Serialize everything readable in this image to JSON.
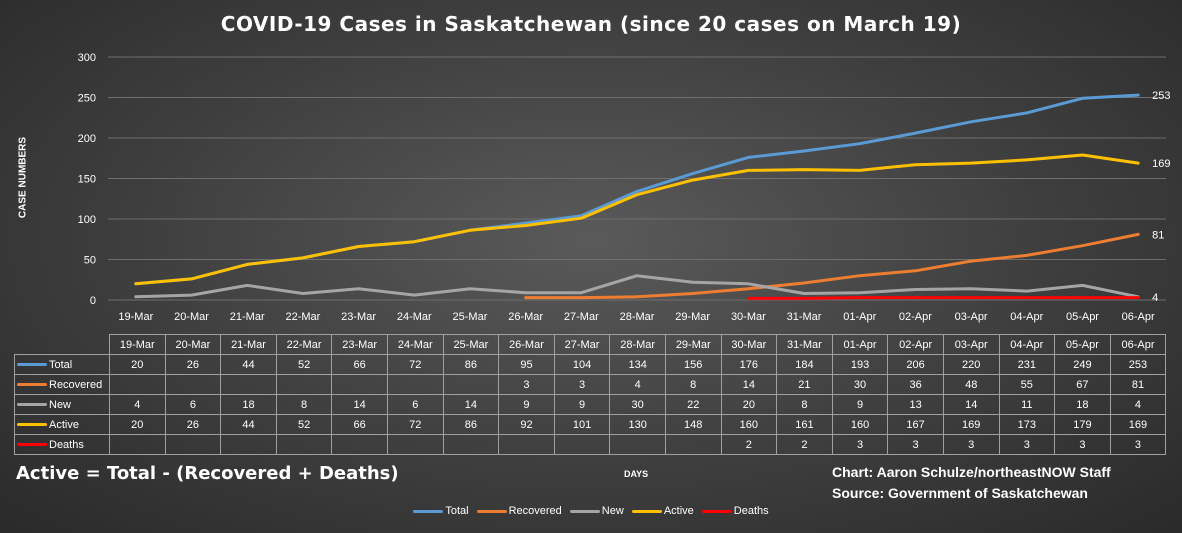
{
  "chart_data": {
    "type": "line",
    "title": "COVID-19 Cases in Saskatchewan (since 20 cases on March 19)",
    "ylabel": "CASE NUMBERS",
    "xlabel": "DAYS",
    "ylim": [
      0,
      300
    ],
    "yticks": [
      "0",
      "50",
      "100",
      "150",
      "200",
      "250",
      "300"
    ],
    "categories": [
      "19-Mar",
      "20-Mar",
      "21-Mar",
      "22-Mar",
      "23-Mar",
      "24-Mar",
      "25-Mar",
      "26-Mar",
      "27-Mar",
      "28-Mar",
      "29-Mar",
      "30-Mar",
      "31-Mar",
      "01-Apr",
      "02-Apr",
      "03-Apr",
      "04-Apr",
      "05-Apr",
      "06-Apr"
    ],
    "series": [
      {
        "name": "Total",
        "color": "#5b9bd5",
        "end_label": "253",
        "values": [
          20,
          26,
          44,
          52,
          66,
          72,
          86,
          95,
          104,
          134,
          156,
          176,
          184,
          193,
          206,
          220,
          231,
          249,
          253
        ]
      },
      {
        "name": "Recovered",
        "color": "#ed7d31",
        "end_label": "81",
        "values": [
          null,
          null,
          null,
          null,
          null,
          null,
          null,
          3,
          3,
          4,
          8,
          14,
          21,
          30,
          36,
          48,
          55,
          67,
          81
        ]
      },
      {
        "name": "New",
        "color": "#a5a5a5",
        "end_label": "4",
        "values": [
          4,
          6,
          18,
          8,
          14,
          6,
          14,
          9,
          9,
          30,
          22,
          20,
          8,
          9,
          13,
          14,
          11,
          18,
          4
        ]
      },
      {
        "name": "Active",
        "color": "#ffc000",
        "end_label": "169",
        "values": [
          20,
          26,
          44,
          52,
          66,
          72,
          86,
          92,
          101,
          130,
          148,
          160,
          161,
          160,
          167,
          169,
          173,
          179,
          169
        ]
      },
      {
        "name": "Deaths",
        "color": "#ff0000",
        "end_label": "",
        "values": [
          null,
          null,
          null,
          null,
          null,
          null,
          null,
          null,
          null,
          null,
          null,
          2,
          2,
          3,
          3,
          3,
          3,
          3,
          3
        ]
      }
    ]
  },
  "footer": {
    "note": "Active = Total - (Recovered + Deaths)",
    "credit_line1": "Chart: Aaron Schulze/northeastNOW Staff",
    "credit_line2": "Source: Government of Saskatchewan"
  }
}
